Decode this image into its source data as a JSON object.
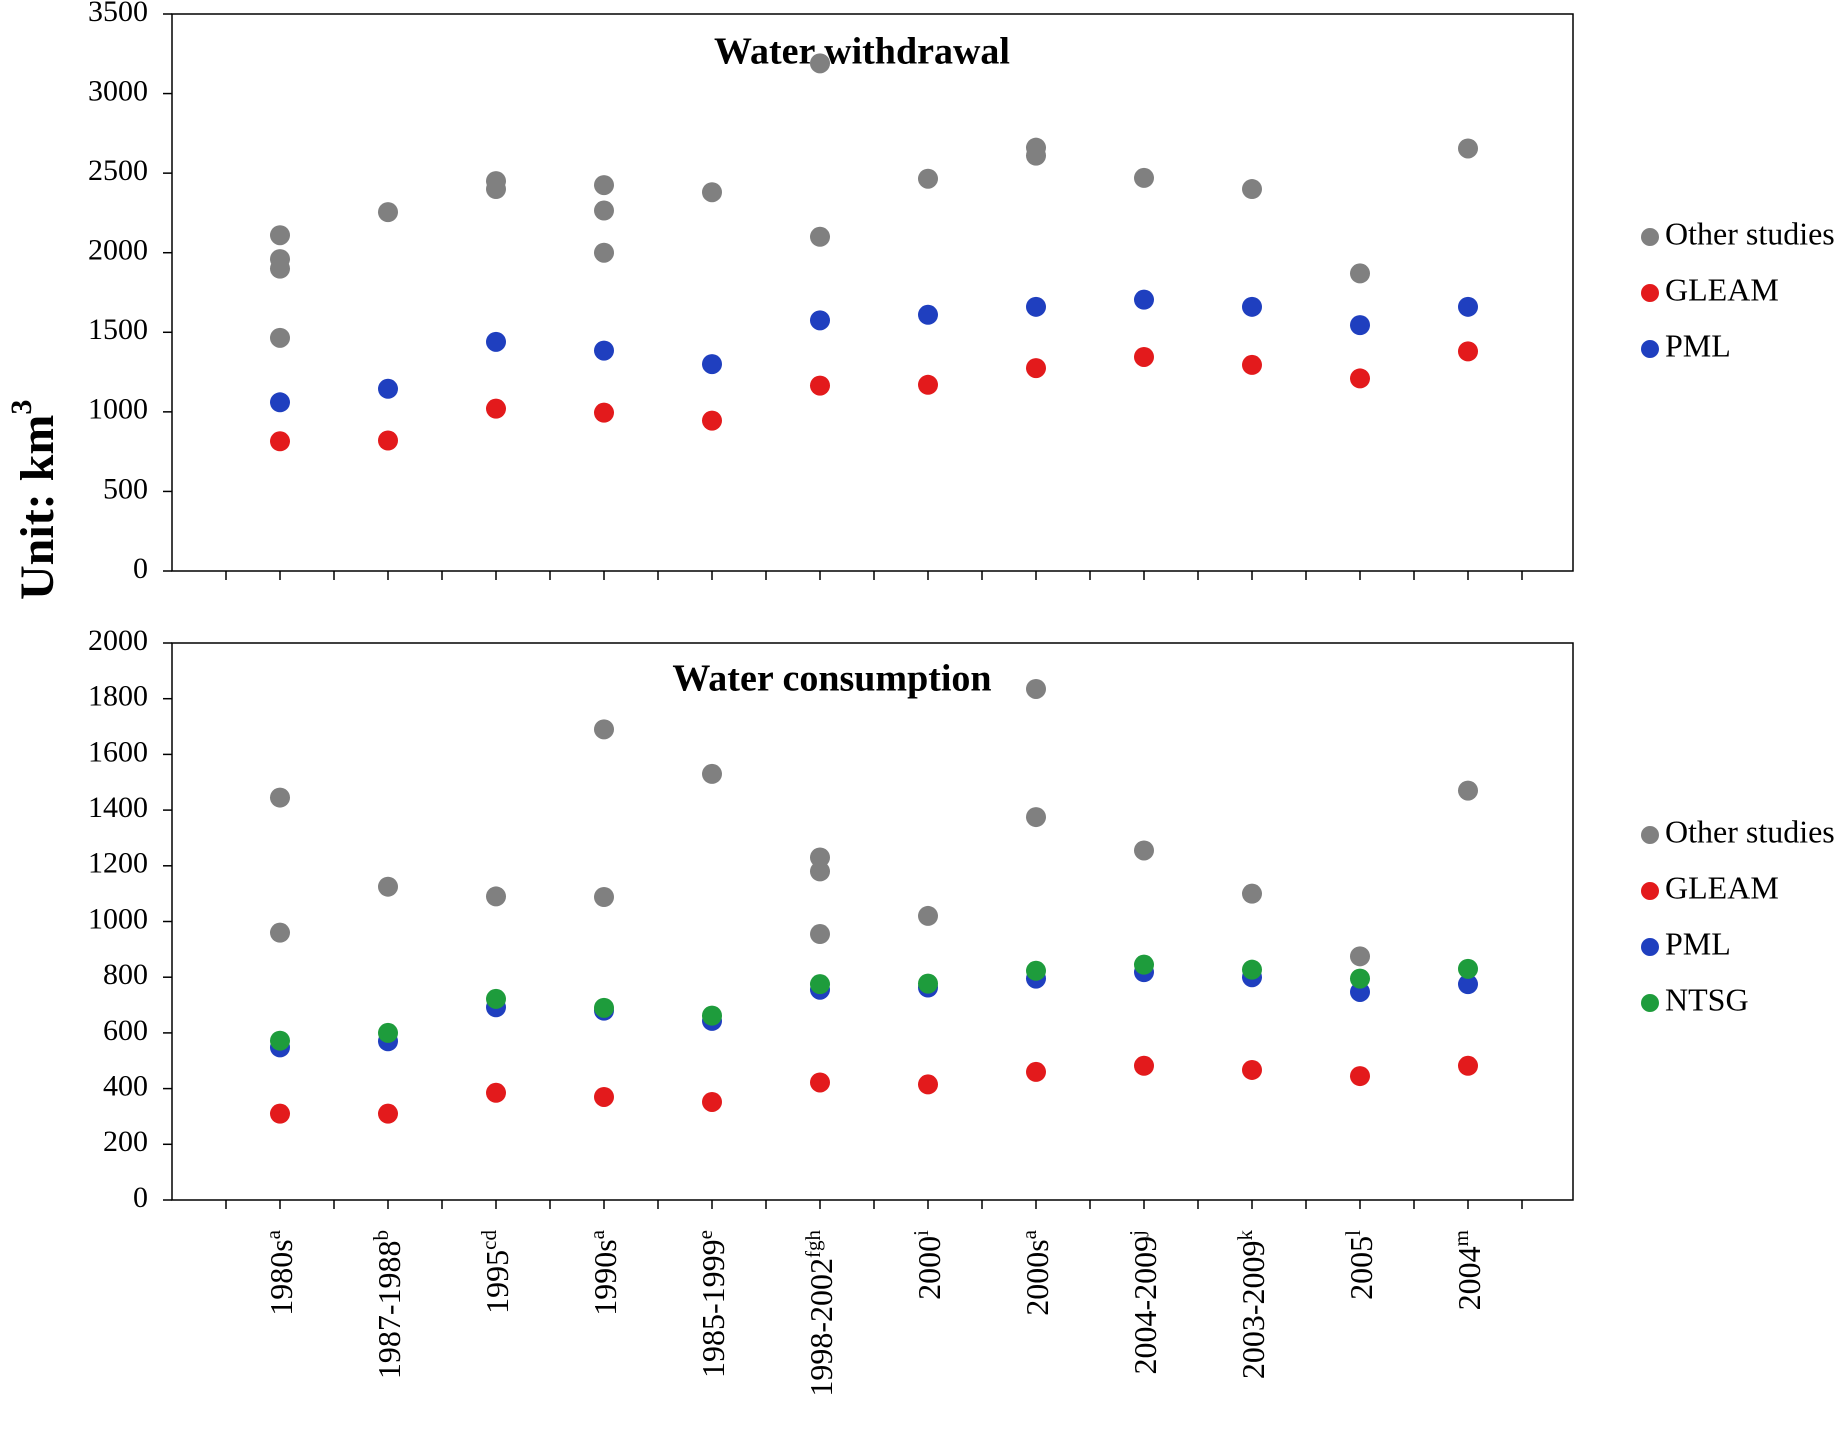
{
  "chart_data": [
    {
      "type": "scatter",
      "title": "Water withdrawal",
      "ylabel": "Unit: km3",
      "ylabel_text": "Unit: km",
      "ylabel_sup": "3",
      "ylim": [
        0,
        3500
      ],
      "yticks": [
        0,
        500,
        1000,
        1500,
        2000,
        2500,
        3000,
        3500
      ],
      "grid": false,
      "legend_position": "right",
      "categories": [
        "1980s",
        "1987-1988",
        "1995",
        "1990s",
        "1985-1999",
        "1998-2002",
        "2000",
        "2000s",
        "2004-2009",
        "2003-2009",
        "2005",
        "2004"
      ],
      "category_superscripts": [
        "a",
        "b",
        "cd",
        "a",
        "e",
        "fgh",
        "i",
        "a",
        "j",
        "k",
        "l",
        "m"
      ],
      "series": [
        {
          "name": "Other studies",
          "color": "#808080",
          "points": [
            [
              "1980s",
              2110
            ],
            [
              "1980s",
              1960
            ],
            [
              "1980s",
              1900
            ],
            [
              "1980s",
              1465
            ],
            [
              "1987-1988",
              2255
            ],
            [
              "1995",
              2450
            ],
            [
              "1995",
              2400
            ],
            [
              "1990s",
              2425
            ],
            [
              "1990s",
              2265
            ],
            [
              "1990s",
              2000
            ],
            [
              "1985-1999",
              2380
            ],
            [
              "1998-2002",
              3190
            ],
            [
              "1998-2002",
              2100
            ],
            [
              "2000",
              2465
            ],
            [
              "2000s",
              2660
            ],
            [
              "2000s",
              2610
            ],
            [
              "2004-2009",
              2470
            ],
            [
              "2003-2009",
              2400
            ],
            [
              "2005",
              1870
            ],
            [
              "2004",
              2655
            ]
          ]
        },
        {
          "name": "GLEAM",
          "color": "#e31a1c",
          "values": [
            815,
            820,
            1020,
            995,
            945,
            1165,
            1170,
            1275,
            1345,
            1295,
            1210,
            1380
          ]
        },
        {
          "name": "PML",
          "color": "#1f3fbf",
          "values": [
            1060,
            1145,
            1440,
            1385,
            1300,
            1575,
            1610,
            1660,
            1705,
            1660,
            1545,
            1660
          ]
        }
      ]
    },
    {
      "type": "scatter",
      "title": "Water consumption",
      "ylabel": "Unit: km3",
      "ylim": [
        0,
        2000
      ],
      "yticks": [
        0,
        200,
        400,
        600,
        800,
        1000,
        1200,
        1400,
        1600,
        1800,
        2000
      ],
      "grid": false,
      "legend_position": "right",
      "categories": [
        "1980s",
        "1987-1988",
        "1995",
        "1990s",
        "1985-1999",
        "1998-2002",
        "2000",
        "2000s",
        "2004-2009",
        "2003-2009",
        "2005",
        "2004"
      ],
      "category_superscripts": [
        "a",
        "b",
        "cd",
        "a",
        "e",
        "fgh",
        "i",
        "a",
        "j",
        "k",
        "l",
        "m"
      ],
      "series": [
        {
          "name": "Other studies",
          "color": "#808080",
          "points": [
            [
              "1980s",
              1445
            ],
            [
              "1980s",
              960
            ],
            [
              "1987-1988",
              1125
            ],
            [
              "1995",
              1090
            ],
            [
              "1990s",
              1690
            ],
            [
              "1990s",
              1088
            ],
            [
              "1985-1999",
              1530
            ],
            [
              "1998-2002",
              1230
            ],
            [
              "1998-2002",
              1180
            ],
            [
              "1998-2002",
              955
            ],
            [
              "2000",
              1020
            ],
            [
              "2000s",
              1835
            ],
            [
              "2000s",
              1375
            ],
            [
              "2004-2009",
              1255
            ],
            [
              "2003-2009",
              1100
            ],
            [
              "2005",
              875
            ],
            [
              "2004",
              1470
            ]
          ]
        },
        {
          "name": "GLEAM",
          "color": "#e31a1c",
          "values": [
            310,
            310,
            385,
            370,
            352,
            422,
            415,
            460,
            482,
            467,
            445,
            482
          ]
        },
        {
          "name": "PML",
          "color": "#1f3fbf",
          "values": [
            548,
            570,
            692,
            680,
            643,
            755,
            763,
            795,
            818,
            800,
            747,
            775
          ]
        },
        {
          "name": "NTSG",
          "color": "#1e9c3c",
          "values": [
            572,
            600,
            722,
            690,
            662,
            775,
            777,
            823,
            845,
            827,
            795,
            830
          ]
        }
      ]
    }
  ]
}
